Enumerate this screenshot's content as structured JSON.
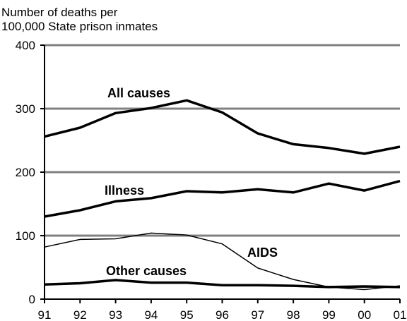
{
  "chart_data": {
    "type": "line",
    "ylabel_lines": [
      "Number of deaths per",
      "100,000 State prison inmates"
    ],
    "x": [
      "91",
      "92",
      "93",
      "94",
      "95",
      "96",
      "97",
      "98",
      "99",
      "00",
      "01"
    ],
    "ylim": [
      0,
      400
    ],
    "yticks": [
      0,
      100,
      200,
      300,
      400
    ],
    "grid": true,
    "legend": "none",
    "series": [
      {
        "name": "All causes",
        "values": [
          256,
          270,
          293,
          301,
          313,
          294,
          261,
          244,
          238,
          229,
          240
        ],
        "stroke": "thick"
      },
      {
        "name": "Illness",
        "values": [
          130,
          140,
          154,
          159,
          170,
          168,
          173,
          168,
          182,
          171,
          186
        ],
        "stroke": "thick"
      },
      {
        "name": "AIDS",
        "values": [
          82,
          94,
          95,
          104,
          101,
          87,
          49,
          31,
          19,
          15,
          21
        ],
        "stroke": "thin"
      },
      {
        "name": "Other causes",
        "values": [
          23,
          25,
          30,
          26,
          26,
          22,
          22,
          21,
          19,
          20,
          19
        ],
        "stroke": "thick"
      }
    ],
    "colors": {
      "line": "#000000",
      "grid": "#808080"
    }
  }
}
